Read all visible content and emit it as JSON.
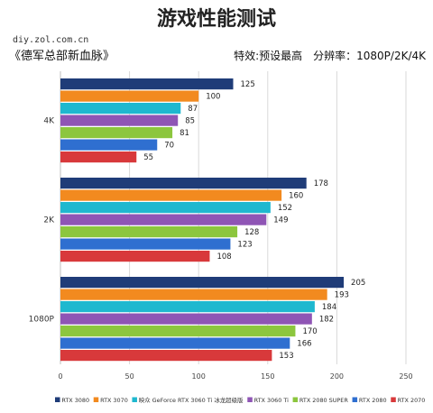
{
  "header": {
    "title": "游戏性能测试",
    "watermark": "diy.zol.com.cn",
    "game": "《德军总部新血脉》",
    "settings": "特效:预设最高　分辨率：1080P/2K/4K"
  },
  "chart_data": {
    "type": "bar",
    "orientation": "horizontal",
    "title": "游戏性能测试",
    "categories": [
      "4K",
      "2K",
      "1080P"
    ],
    "xlim": [
      0,
      250
    ],
    "xticks": [
      0,
      50,
      100,
      150,
      200,
      250
    ],
    "grid": true,
    "legend_position": "bottom",
    "series": [
      {
        "name": "RTX 3080",
        "color": "#1f3c78",
        "values": [
          125,
          178,
          205
        ]
      },
      {
        "name": "RTX 3070",
        "color": "#f28a1f",
        "values": [
          100,
          160,
          193
        ]
      },
      {
        "name": "映众 GeForce RTX 3060 Ti 冰龙超级版",
        "color": "#1fb8cf",
        "values": [
          87,
          152,
          184
        ]
      },
      {
        "name": "RTX 3060 Ti",
        "color": "#8f55b5",
        "values": [
          85,
          149,
          182
        ]
      },
      {
        "name": "RTX 2080 SUPER",
        "color": "#8cc63e",
        "values": [
          81,
          128,
          170
        ]
      },
      {
        "name": "RTX 2080",
        "color": "#2f6fd0",
        "values": [
          70,
          123,
          166
        ]
      },
      {
        "name": "RTX 2070",
        "color": "#d8393b",
        "values": [
          55,
          108,
          153
        ]
      }
    ]
  }
}
